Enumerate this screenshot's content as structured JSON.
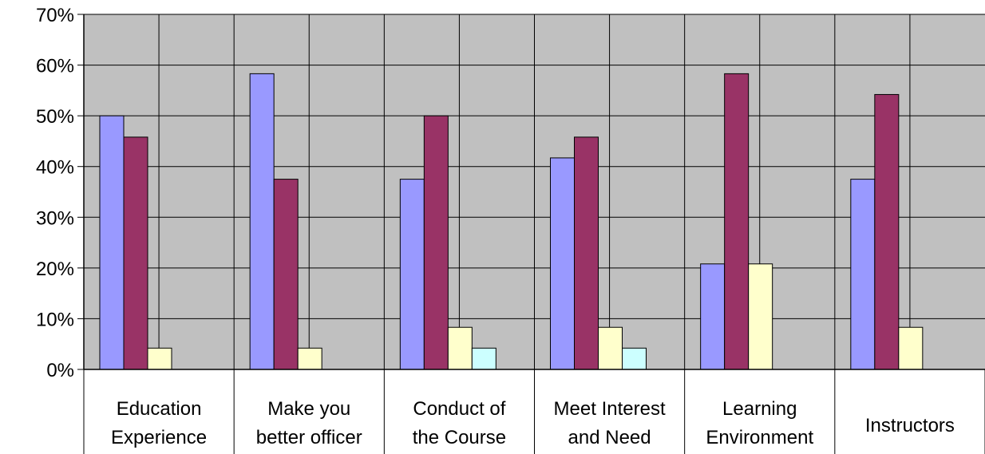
{
  "chart_data": {
    "type": "bar",
    "title": "",
    "xlabel": "",
    "ylabel": "",
    "ylim": [
      0,
      70
    ],
    "grid": true,
    "y_ticks": [
      "0%",
      "10%",
      "20%",
      "30%",
      "40%",
      "50%",
      "60%",
      "70%"
    ],
    "categories": [
      [
        "Education",
        "Experience"
      ],
      [
        "Make you",
        "better officer"
      ],
      [
        "Conduct of",
        "the Course"
      ],
      [
        "Meet Interest",
        "and Need"
      ],
      [
        "Learning",
        "Environment"
      ],
      [
        "Instructors"
      ]
    ],
    "series": [
      {
        "color": "#9999ff",
        "values": [
          50,
          58.3,
          37.5,
          41.7,
          20.8,
          37.5
        ]
      },
      {
        "color": "#993366",
        "values": [
          45.8,
          37.5,
          50,
          45.8,
          58.3,
          54.2
        ]
      },
      {
        "color": "#ffffcc",
        "values": [
          4.2,
          4.2,
          8.3,
          8.3,
          20.8,
          8.3
        ]
      },
      {
        "color": "#ccffff",
        "values": [
          0,
          0,
          4.2,
          4.2,
          0,
          0
        ]
      }
    ],
    "plot_background": "#c0c0c0",
    "gridline_color": "#000000"
  }
}
